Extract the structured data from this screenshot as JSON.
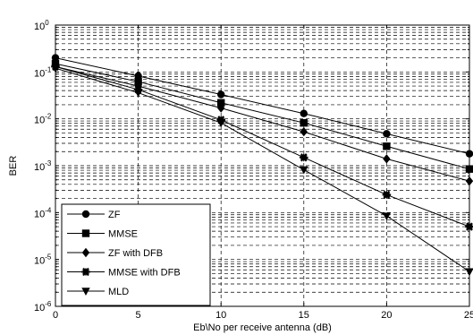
{
  "chart_data": {
    "type": "line",
    "xlabel": "Eb\\No per receive antenna (dB)",
    "ylabel": "BER",
    "x": [
      0,
      5,
      10,
      15,
      20,
      25
    ],
    "xlim": [
      0,
      25
    ],
    "ylim": [
      1e-06,
      1
    ],
    "yscale": "log",
    "xticks": [
      "0",
      "5",
      "10",
      "15",
      "20",
      "25"
    ],
    "yticks": [
      {
        "base": "10",
        "exp": "-6"
      },
      {
        "base": "10",
        "exp": "-5"
      },
      {
        "base": "10",
        "exp": "-4"
      },
      {
        "base": "10",
        "exp": "-3"
      },
      {
        "base": "10",
        "exp": "-2"
      },
      {
        "base": "10",
        "exp": "-1"
      },
      {
        "base": "10",
        "exp": "0"
      }
    ],
    "grid": true,
    "legend_position": "bottom-left",
    "series": [
      {
        "name": "ZF",
        "marker": "circle",
        "values": [
          0.2,
          0.082,
          0.033,
          0.013,
          0.0048,
          0.0018
        ]
      },
      {
        "name": "MMSE",
        "marker": "square",
        "values": [
          0.15,
          0.062,
          0.022,
          0.0082,
          0.0026,
          0.00085
        ]
      },
      {
        "name": "ZF with DFB",
        "marker": "diamond",
        "values": [
          0.13,
          0.05,
          0.017,
          0.0053,
          0.0014,
          0.00047
        ]
      },
      {
        "name": "MMSE with DFB",
        "marker": "star",
        "values": [
          0.13,
          0.042,
          0.0095,
          0.0015,
          0.00024,
          5e-05
        ]
      },
      {
        "name": "MLD",
        "marker": "triangle-down",
        "values": [
          0.12,
          0.036,
          0.0082,
          0.00082,
          8.5e-05,
          5.5e-06
        ]
      }
    ]
  }
}
